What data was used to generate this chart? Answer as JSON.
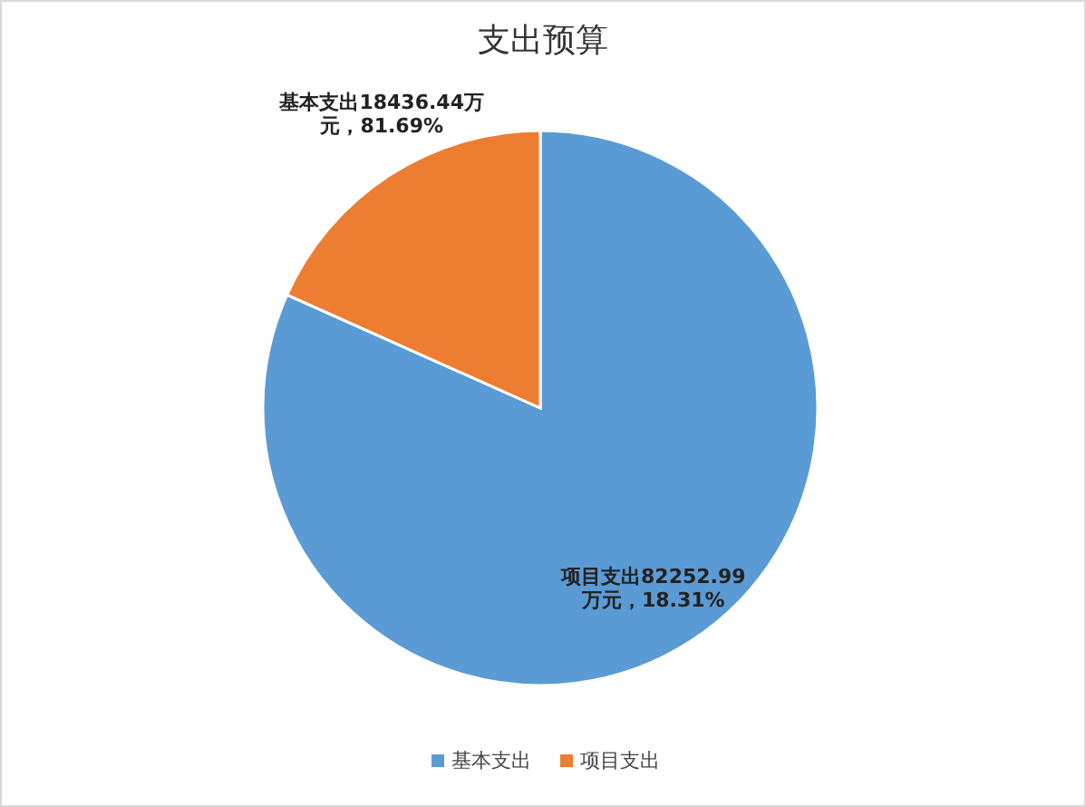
{
  "chart_data": {
    "type": "pie",
    "title": "支出预算",
    "categories": [
      "基本支出",
      "项目支出"
    ],
    "values": [
      82252.99,
      18436.44
    ],
    "colors": [
      "#5b9bd5",
      "#ed7d31"
    ],
    "value_labels": [
      "项目支出82252.99万元，18.31%",
      "基本支出18436.44万元，81.69%"
    ],
    "legend": "bottom"
  }
}
